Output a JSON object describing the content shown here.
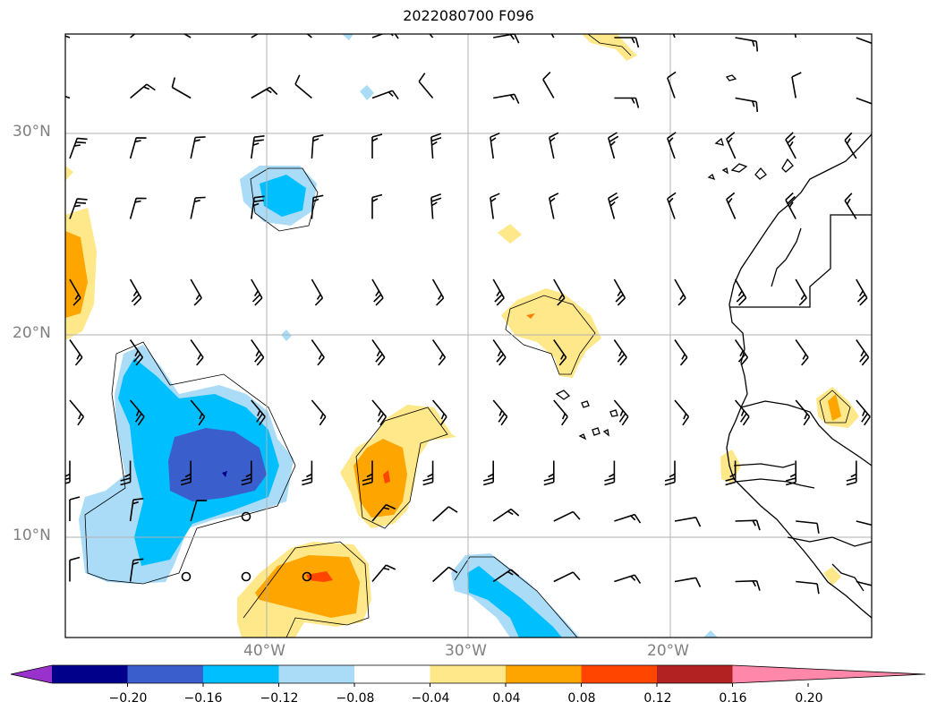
{
  "title": "2022080700 F096",
  "grid": {
    "lat_labels": [
      {
        "id": "30n",
        "text": "30°N"
      },
      {
        "id": "20n",
        "text": "20°N"
      },
      {
        "id": "10n",
        "text": "10°N"
      }
    ],
    "lon_labels": [
      {
        "id": "40w",
        "text": "40°W"
      },
      {
        "id": "30w",
        "text": "30°W"
      },
      {
        "id": "20w",
        "text": "20°W"
      }
    ]
  },
  "colorbar": {
    "ticks": [
      "−0.20",
      "−0.16",
      "−0.12",
      "−0.08",
      "−0.04",
      "0.04",
      "0.08",
      "0.12",
      "0.16",
      "0.20"
    ],
    "colors": [
      "#9932cc",
      "#00008b",
      "#3a5fcd",
      "#00bfff",
      "#aadcf8",
      "#ffffff",
      "#ffe88a",
      "#ffa500",
      "#ff4500",
      "#b22222",
      "#ff88aa"
    ]
  },
  "map_features": {
    "coastline": "West Africa (Western Sahara, Mauritania, Senegal, Guinea, Sierra Leone)",
    "islands": [
      "Canary Islands",
      "Cape Verde Islands",
      "Madeira"
    ],
    "overlay": "wind barbs"
  }
}
